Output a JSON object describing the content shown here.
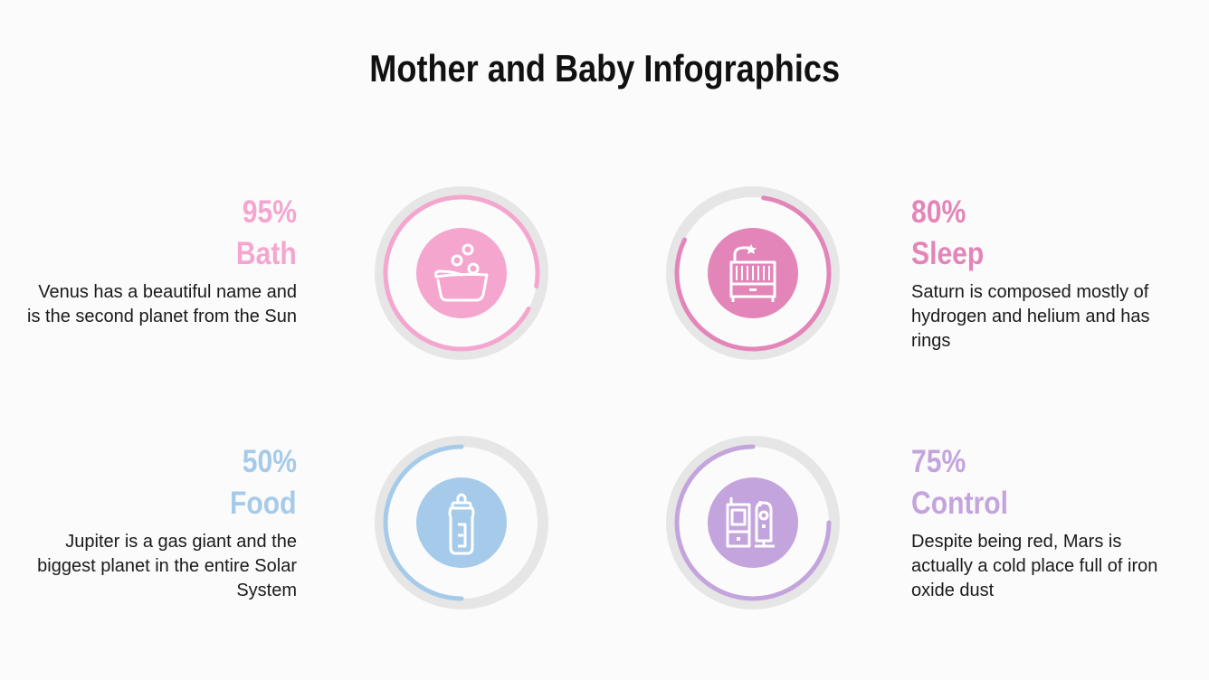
{
  "title": "Mother and Baby Infographics",
  "items": [
    {
      "percent_label": "95%",
      "percent": 95,
      "label": "Bath",
      "description": "Venus has a beautiful name and is the second planet from the Sun",
      "color": "#f5a6cf",
      "icon": "bathtub-icon"
    },
    {
      "percent_label": "80%",
      "percent": 80,
      "label": "Sleep",
      "description": "Saturn is composed mostly of hydrogen and helium and has rings",
      "color": "#e385b9",
      "icon": "crib-icon"
    },
    {
      "percent_label": "50%",
      "percent": 50,
      "label": "Food",
      "description": "Jupiter is a gas giant and the biggest planet in the entire Solar System",
      "color": "#a6cbea",
      "icon": "baby-bottle-icon"
    },
    {
      "percent_label": "75%",
      "percent": 75,
      "label": "Control",
      "description": "Despite being red, Mars is actually a cold place full of iron oxide dust",
      "color": "#c4a4dd",
      "icon": "baby-monitor-icon"
    }
  ],
  "ring_track_color": "#e6e6e6"
}
